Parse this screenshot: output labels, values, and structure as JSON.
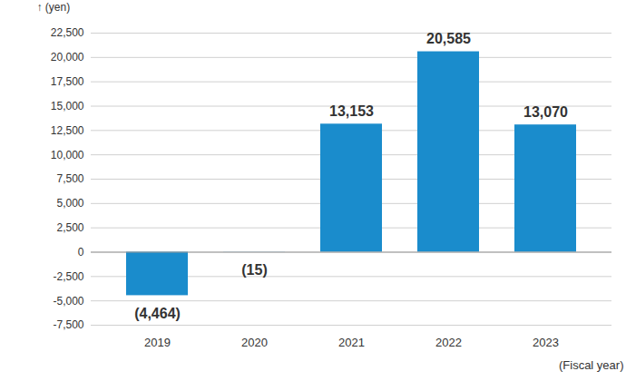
{
  "chart_data": {
    "type": "bar",
    "y_label": "(yen)",
    "x_label": "(Fiscal year)",
    "categories": [
      "2019",
      "2020",
      "2021",
      "2022",
      "2023"
    ],
    "values": [
      -4464,
      -15,
      13153,
      20585,
      13070
    ],
    "value_labels": [
      "(4,464)",
      "(15)",
      "13,153",
      "20,585",
      "13,070"
    ],
    "color": "#1a8ccc",
    "ylim": [
      -7500,
      22500
    ],
    "yticks": [
      {
        "value": -7500,
        "label": "-7,500"
      },
      {
        "value": -5000,
        "label": "-5,000"
      },
      {
        "value": -2500,
        "label": "-2,500"
      },
      0,
      {
        "value": 2500,
        "label": "2,500"
      },
      {
        "value": 5000,
        "label": "5,000"
      },
      {
        "value": 7500,
        "label": "7,500"
      },
      {
        "value": 10000,
        "label": "10,000"
      },
      {
        "value": 12500,
        "label": "12,500"
      },
      {
        "value": 15000,
        "label": "15,000"
      },
      {
        "value": 17500,
        "label": "17,500"
      },
      {
        "value": 20000,
        "label": "20,000"
      },
      {
        "value": 22500,
        "label": "22,500"
      }
    ],
    "grid": true,
    "data_labels": true
  }
}
